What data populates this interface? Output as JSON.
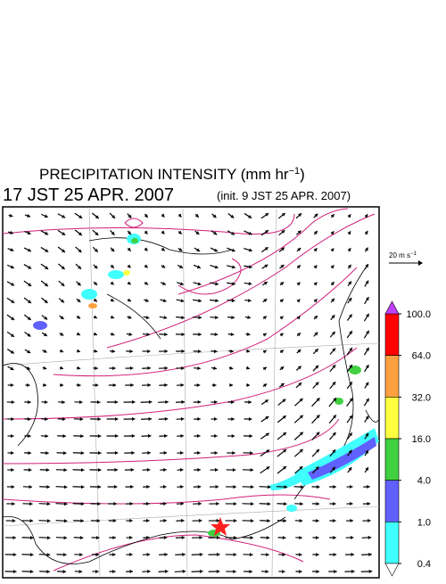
{
  "header": {
    "title": {
      "text": "PRECIPITATION INTENSITY (mm hr",
      "superscript": "−1",
      "suffix": ")"
    },
    "valid_time": "17 JST 25 APR. 2007",
    "init_time": "(init. 9 JST 25 APR. 2007)"
  },
  "wind_scale": {
    "text": "20 m s",
    "superscript": "−1"
  },
  "colorbar": {
    "ticks": [
      {
        "value": 100,
        "label": "100.0"
      },
      {
        "value": 64,
        "label": "64.0"
      },
      {
        "value": 32,
        "label": "32.0"
      },
      {
        "value": 16,
        "label": "16.0"
      },
      {
        "value": 4,
        "label": "4.0"
      },
      {
        "value": 1,
        "label": "1.0"
      },
      0.4
    ],
    "colors": [
      "#ff0000",
      "#ffa040",
      "#ffff40",
      "#40d040",
      "#6060ff",
      "#40ffff"
    ],
    "over_color": "#c040ff",
    "under_color": "#ffffff"
  }
}
